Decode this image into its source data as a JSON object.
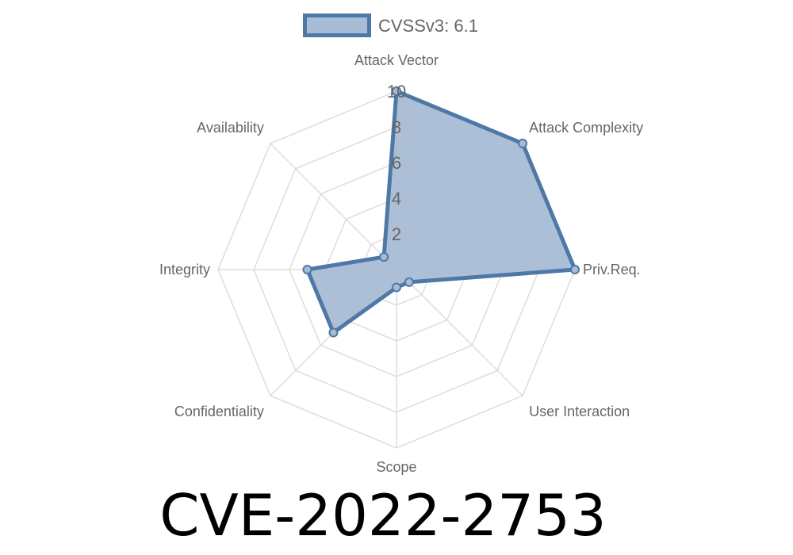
{
  "chart_data": {
    "type": "radar",
    "title": "CVE-2022-2753",
    "categories": [
      "Attack Vector",
      "Attack Complexity",
      "Priv.Req.",
      "User Interaction",
      "Scope",
      "Confidentiality",
      "Integrity",
      "Availability"
    ],
    "series": [
      {
        "name": "CVSSv3: 6.1",
        "values": [
          10,
          10,
          10,
          1,
          1,
          5,
          5,
          1
        ]
      }
    ],
    "rlim": [
      0,
      10
    ],
    "ticks": [
      "2",
      "4",
      "6",
      "8",
      "10"
    ],
    "tick_values": [
      2,
      4,
      6,
      8,
      10
    ],
    "grid": true,
    "legend_position": "top",
    "colors": {
      "line": "#4e79a7",
      "fill": "#a8bcd5",
      "grid": "#dddddd",
      "text": "#666666"
    }
  }
}
